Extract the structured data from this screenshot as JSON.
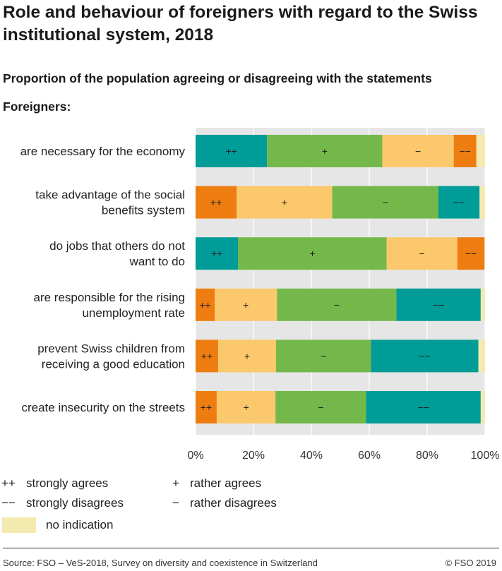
{
  "title": "Role and behaviour of foreigners with regard to the Swiss institutional system, 2018",
  "subtitle": "Proportion of the population agreeing or disagreeing with the statements",
  "group_label": "Foreigners:",
  "source": "Source: FSO – VeS-2018, Survey on diversity and coexistence in Switzerland",
  "copyright": "© FSO 2019",
  "colors": {
    "teal": "#009c97",
    "green": "#74b84b",
    "light_orange": "#fbc86b",
    "orange": "#ee7d11",
    "no_indication": "#f3eab0",
    "plot_background": "#e6e6e6"
  },
  "legend": [
    {
      "symbol": "++",
      "label": "strongly agrees"
    },
    {
      "symbol": "+",
      "label": "rather agrees"
    },
    {
      "symbol": "−−",
      "label": "strongly disagrees"
    },
    {
      "symbol": "−",
      "label": "rather disagrees"
    },
    {
      "symbol": "",
      "label": "no indication"
    }
  ],
  "chart_data": {
    "type": "bar",
    "orientation": "horizontal",
    "stacked": true,
    "x_axis": {
      "min": 0,
      "max": 100,
      "ticks": [
        0,
        20,
        40,
        60,
        80,
        100
      ],
      "tick_labels": [
        "0%",
        "20%",
        "40%",
        "60%",
        "80%",
        "100%"
      ]
    },
    "grid": true,
    "rows": [
      {
        "label_lines": [
          "are necessary for the economy"
        ],
        "segments": [
          {
            "symbol": "++",
            "value": 24.7,
            "color": "teal"
          },
          {
            "symbol": "+",
            "value": 39.8,
            "color": "green"
          },
          {
            "symbol": "−",
            "value": 24.7,
            "color": "light_orange"
          },
          {
            "symbol": "−−",
            "value": 7.8,
            "color": "orange"
          },
          {
            "symbol": "",
            "value": 3.0,
            "color": "no_indication"
          }
        ]
      },
      {
        "label_lines": [
          "take advantage of the social",
          "benefits system"
        ],
        "segments": [
          {
            "symbol": "++",
            "value": 14.2,
            "color": "orange"
          },
          {
            "symbol": "+",
            "value": 33.0,
            "color": "light_orange"
          },
          {
            "symbol": "−",
            "value": 36.7,
            "color": "green"
          },
          {
            "symbol": "−−",
            "value": 14.2,
            "color": "teal"
          },
          {
            "symbol": "",
            "value": 1.9,
            "color": "no_indication"
          }
        ]
      },
      {
        "label_lines": [
          "do jobs that others do not",
          "want to do"
        ],
        "segments": [
          {
            "symbol": "++",
            "value": 14.7,
            "color": "teal"
          },
          {
            "symbol": "+",
            "value": 51.3,
            "color": "green"
          },
          {
            "symbol": "−",
            "value": 24.4,
            "color": "light_orange"
          },
          {
            "symbol": "−−",
            "value": 9.4,
            "color": "orange"
          },
          {
            "symbol": "",
            "value": 0.2,
            "color": "no_indication"
          }
        ]
      },
      {
        "label_lines": [
          "are responsible for the rising",
          "unemployment rate"
        ],
        "segments": [
          {
            "symbol": "++",
            "value": 6.6,
            "color": "orange"
          },
          {
            "symbol": "+",
            "value": 21.5,
            "color": "light_orange"
          },
          {
            "symbol": "−",
            "value": 41.3,
            "color": "green"
          },
          {
            "symbol": "−−",
            "value": 29.1,
            "color": "teal"
          },
          {
            "symbol": "",
            "value": 1.5,
            "color": "no_indication"
          }
        ]
      },
      {
        "label_lines": [
          "prevent Swiss children from",
          "receiving a good education"
        ],
        "segments": [
          {
            "symbol": "++",
            "value": 7.8,
            "color": "orange"
          },
          {
            "symbol": "+",
            "value": 20.0,
            "color": "light_orange"
          },
          {
            "symbol": "−",
            "value": 32.8,
            "color": "green"
          },
          {
            "symbol": "−−",
            "value": 37.1,
            "color": "teal"
          },
          {
            "symbol": "",
            "value": 2.3,
            "color": "no_indication"
          }
        ]
      },
      {
        "label_lines": [
          "create insecurity on the streets"
        ],
        "segments": [
          {
            "symbol": "++",
            "value": 7.3,
            "color": "orange"
          },
          {
            "symbol": "+",
            "value": 20.3,
            "color": "light_orange"
          },
          {
            "symbol": "−",
            "value": 31.3,
            "color": "green"
          },
          {
            "symbol": "−−",
            "value": 39.6,
            "color": "teal"
          },
          {
            "symbol": "",
            "value": 1.5,
            "color": "no_indication"
          }
        ]
      }
    ]
  }
}
